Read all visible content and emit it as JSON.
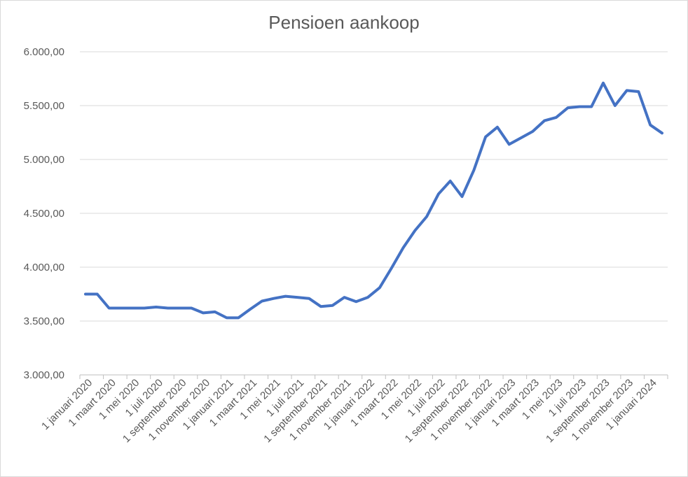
{
  "chart_data": {
    "type": "line",
    "title": "Pensioen aankoop",
    "xlabel": "",
    "ylabel": "",
    "ylim": [
      3000,
      6000
    ],
    "yticks": [
      3000,
      3500,
      4000,
      4500,
      5000,
      5500,
      6000
    ],
    "ytick_labels": [
      "3.000,00",
      "3.500,00",
      "4.000,00",
      "4.500,00",
      "5.000,00",
      "5.500,00",
      "6.000,00"
    ],
    "xtick_labels": [
      "1 januari 2020",
      "1 maart 2020",
      "1 mei 2020",
      "1 juli 2020",
      "1 september 2020",
      "1 november 2020",
      "1 januari 2021",
      "1 maart 2021",
      "1 mei 2021",
      "1 juli 2021",
      "1 september 2021",
      "1 november 2021",
      "1 januari 2022",
      "1 maart 2022",
      "1 mei 2022",
      "1 juli 2022",
      "1 september 2022",
      "1 november 2022",
      "1 januari 2023",
      "1 maart 2023",
      "1 mei 2023",
      "1 juli 2023",
      "1 september 2023",
      "1 november 2023",
      "1 januari 2024"
    ],
    "grid": true,
    "legend": "none",
    "line_color": "#4472c4",
    "series": [
      {
        "values": [
          3750,
          3750,
          3620,
          3620,
          3620,
          3620,
          3630,
          3620,
          3620,
          3620,
          3575,
          3585,
          3530,
          3530,
          3610,
          3685,
          3710,
          3730,
          3720,
          3710,
          3635,
          3645,
          3720,
          3680,
          3720,
          3810,
          3990,
          4180,
          4340,
          4470,
          4680,
          4800,
          4655,
          4900,
          5210,
          5300,
          5140,
          5200,
          5260,
          5360,
          5390,
          5480,
          5490,
          5490,
          5710,
          5500,
          5640,
          5630,
          5320,
          5245
        ]
      }
    ]
  }
}
